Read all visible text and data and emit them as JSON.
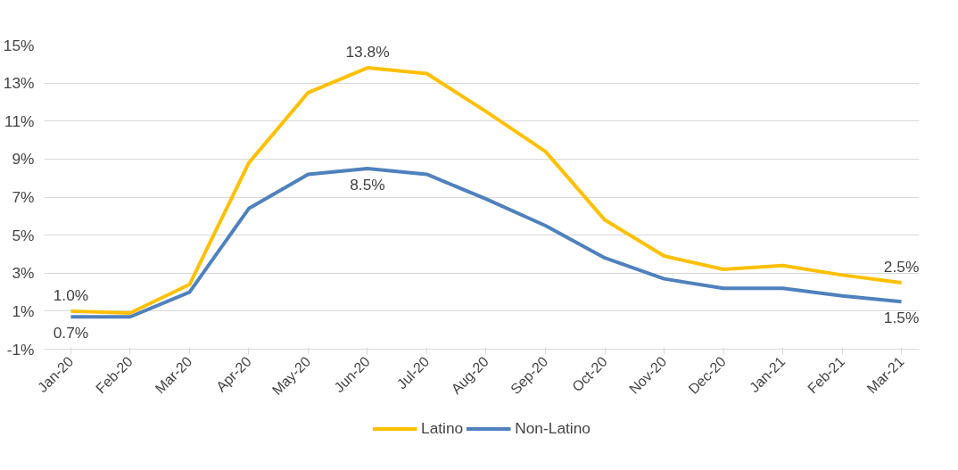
{
  "chart_data": {
    "type": "line",
    "categories": [
      "Jan-20",
      "Feb-20",
      "Mar-20",
      "Apr-20",
      "May-20",
      "Jun-20",
      "Jul-20",
      "Aug-20",
      "Sep-20",
      "Oct-20",
      "Nov-20",
      "Dec-20",
      "Jan-21",
      "Feb-21",
      "Mar-21"
    ],
    "series": [
      {
        "name": "Latino",
        "color": "#ffc000",
        "values": [
          1.0,
          0.9,
          2.4,
          8.8,
          12.5,
          13.8,
          13.5,
          11.5,
          9.4,
          5.8,
          3.9,
          3.2,
          3.4,
          2.9,
          2.5
        ],
        "value_labels": [
          "1.0%",
          null,
          null,
          null,
          null,
          "13.8%",
          null,
          null,
          null,
          null,
          null,
          null,
          null,
          null,
          "2.5%"
        ]
      },
      {
        "name": "Non-Latino",
        "color": "#4f81bd",
        "values": [
          0.7,
          0.7,
          2.0,
          6.4,
          8.2,
          8.5,
          8.2,
          6.9,
          5.5,
          3.8,
          2.7,
          2.2,
          2.2,
          1.8,
          1.5
        ],
        "value_labels": [
          "0.7%",
          null,
          null,
          null,
          null,
          "8.5%",
          null,
          null,
          null,
          null,
          null,
          null,
          null,
          null,
          "1.5%"
        ]
      }
    ],
    "ylim": [
      -1,
      15
    ],
    "yticks": [
      {
        "value": -1,
        "label": "-1%"
      },
      {
        "value": 1,
        "label": "1%"
      },
      {
        "value": 3,
        "label": "3%"
      },
      {
        "value": 5,
        "label": "5%"
      },
      {
        "value": 7,
        "label": "7%"
      },
      {
        "value": 9,
        "label": "9%"
      },
      {
        "value": 11,
        "label": "11%"
      },
      {
        "value": 13,
        "label": "13%"
      },
      {
        "value": 15,
        "label": "15%"
      }
    ],
    "grid": "y",
    "legend": "bottom",
    "marker": "none",
    "line_style": "solid"
  }
}
